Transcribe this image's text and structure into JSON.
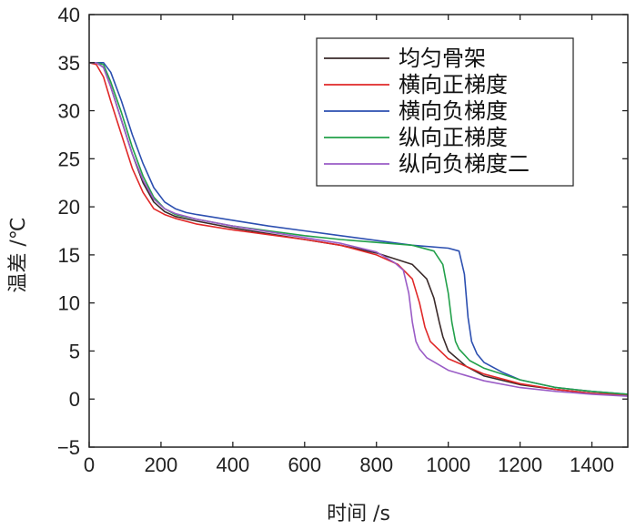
{
  "chart_data": {
    "type": "line",
    "title": "",
    "xlabel": "时间 /s",
    "ylabel": "温差 /℃",
    "xlim": [
      0,
      1500
    ],
    "ylim": [
      -5,
      40
    ],
    "xticks": [
      0,
      200,
      400,
      600,
      800,
      1000,
      1200,
      1400
    ],
    "yticks": [
      40,
      35,
      30,
      25,
      20,
      15,
      10,
      5,
      0,
      -5
    ],
    "xtick_labels": [
      "0",
      "200",
      "400",
      "600",
      "800",
      "1000",
      "1200",
      "1400"
    ],
    "ytick_labels": [
      "40",
      "35",
      "30",
      "25",
      "20",
      "15",
      "10",
      "5",
      "0",
      "−5"
    ],
    "grid": false,
    "legend_position": "top-right",
    "series": [
      {
        "name": "均匀骨架",
        "color": "#3a2a2a",
        "x": [
          0,
          20,
          40,
          60,
          90,
          120,
          150,
          180,
          210,
          240,
          300,
          400,
          500,
          600,
          700,
          800,
          900,
          940,
          960,
          975,
          985,
          1000,
          1050,
          1100,
          1200,
          1300,
          1400,
          1500
        ],
        "y": [
          35,
          35,
          34.5,
          32.5,
          29,
          25.5,
          22.5,
          20.5,
          19.5,
          19,
          18.5,
          17.8,
          17.2,
          16.6,
          16,
          15.2,
          14,
          12.5,
          10.5,
          8,
          6.5,
          5,
          3.4,
          2.4,
          1.5,
          1,
          0.6,
          0.4
        ]
      },
      {
        "name": "横向正梯度",
        "color": "#e02828",
        "x": [
          0,
          20,
          40,
          60,
          90,
          120,
          150,
          180,
          210,
          240,
          300,
          400,
          500,
          600,
          700,
          800,
          860,
          900,
          920,
          935,
          950,
          1000,
          1100,
          1200,
          1300,
          1400,
          1500
        ],
        "y": [
          35,
          34.8,
          33.5,
          31,
          27.5,
          24,
          21.5,
          19.8,
          19.2,
          18.8,
          18.2,
          17.6,
          17.1,
          16.6,
          16,
          15,
          14,
          12.5,
          10,
          7.5,
          6,
          4.2,
          2.6,
          1.6,
          1,
          0.6,
          0.4
        ]
      },
      {
        "name": "横向负梯度",
        "color": "#2c4fb0",
        "x": [
          0,
          20,
          40,
          60,
          90,
          120,
          150,
          180,
          210,
          240,
          270,
          300,
          400,
          500,
          600,
          700,
          800,
          900,
          1000,
          1030,
          1045,
          1055,
          1065,
          1080,
          1100,
          1150,
          1200,
          1300,
          1400,
          1500
        ],
        "y": [
          35,
          35,
          35,
          34,
          31,
          27.5,
          24.5,
          22,
          20.5,
          19.8,
          19.4,
          19.2,
          18.6,
          18,
          17.5,
          17,
          16.5,
          16,
          15.7,
          15.4,
          13,
          8.5,
          6,
          4.7,
          3.8,
          2.8,
          2,
          1.2,
          0.8,
          0.5
        ]
      },
      {
        "name": "纵向正梯度",
        "color": "#22a04a",
        "x": [
          0,
          20,
          40,
          60,
          90,
          120,
          150,
          180,
          210,
          240,
          300,
          400,
          500,
          600,
          700,
          800,
          900,
          960,
          985,
          1000,
          1010,
          1020,
          1030,
          1060,
          1100,
          1200,
          1300,
          1400,
          1500
        ],
        "y": [
          35,
          35,
          34.8,
          33,
          29.8,
          26.2,
          23.2,
          21,
          19.8,
          19.2,
          18.7,
          18,
          17.5,
          17,
          16.6,
          16.3,
          16,
          15.4,
          14,
          11,
          8,
          6,
          5.2,
          4,
          3.2,
          2,
          1.2,
          0.8,
          0.5
        ]
      },
      {
        "name": "纵向负梯度二",
        "color": "#9a5cc6",
        "x": [
          0,
          20,
          40,
          60,
          90,
          120,
          150,
          180,
          210,
          240,
          300,
          400,
          500,
          600,
          700,
          800,
          850,
          875,
          890,
          900,
          910,
          920,
          940,
          1000,
          1100,
          1200,
          1300,
          1400,
          1500
        ],
        "y": [
          35,
          35,
          34.5,
          32.5,
          29,
          25.5,
          22.8,
          20.8,
          19.8,
          19.3,
          18.7,
          18,
          17.4,
          16.8,
          16.2,
          15.3,
          14.2,
          13.4,
          11,
          8,
          6,
          5.2,
          4.3,
          3,
          1.9,
          1.2,
          0.8,
          0.5,
          0.3
        ]
      }
    ]
  }
}
